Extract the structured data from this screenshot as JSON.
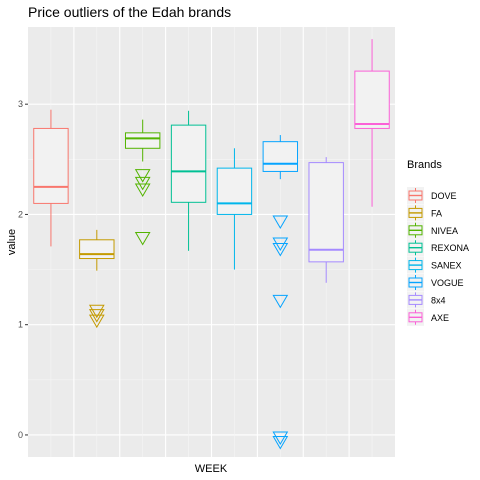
{
  "chart_data": {
    "type": "boxplot",
    "title": "Price outliers of the Edah brands",
    "xlabel": "WEEK",
    "ylabel": "value",
    "yticks": [
      0,
      1,
      2,
      3
    ],
    "ylim": [
      -0.2,
      3.7
    ],
    "grid": true,
    "legend": {
      "title": "Brands",
      "position": "right"
    },
    "series": [
      {
        "name": "DOVE",
        "color": "#F8766D",
        "min": 1.71,
        "q1": 2.1,
        "median": 2.25,
        "q3": 2.78,
        "max": 2.95,
        "outliers": []
      },
      {
        "name": "FA",
        "color": "#C49A00",
        "min": 1.49,
        "q1": 1.6,
        "median": 1.64,
        "q3": 1.77,
        "max": 1.86,
        "outliers": [
          1.14,
          1.1,
          1.05
        ]
      },
      {
        "name": "NIVEA",
        "color": "#53B400",
        "min": 2.48,
        "q1": 2.6,
        "median": 2.69,
        "q3": 2.74,
        "max": 2.86,
        "outliers": [
          2.37,
          2.3,
          2.24,
          1.8
        ]
      },
      {
        "name": "REXONA",
        "color": "#00C094",
        "min": 1.67,
        "q1": 2.11,
        "median": 2.39,
        "q3": 2.81,
        "max": 2.94,
        "outliers": []
      },
      {
        "name": "SANEX",
        "color": "#00B6EB",
        "min": 1.5,
        "q1": 2.0,
        "median": 2.1,
        "q3": 2.42,
        "max": 2.6,
        "outliers": []
      },
      {
        "name": "VOGUE",
        "color": "#06A4FF",
        "min": 2.32,
        "q1": 2.39,
        "median": 2.46,
        "q3": 2.66,
        "max": 2.72,
        "outliers": [
          1.95,
          1.75,
          1.7,
          1.23,
          -0.01,
          -0.05
        ]
      },
      {
        "name": "8x4",
        "color": "#A58AFF",
        "min": 1.38,
        "q1": 1.57,
        "median": 1.68,
        "q3": 2.47,
        "max": 2.52,
        "outliers": []
      },
      {
        "name": "AXE",
        "color": "#FB61D7",
        "min": 2.07,
        "q1": 2.78,
        "median": 2.82,
        "q3": 3.3,
        "max": 3.59,
        "outliers": []
      }
    ]
  }
}
